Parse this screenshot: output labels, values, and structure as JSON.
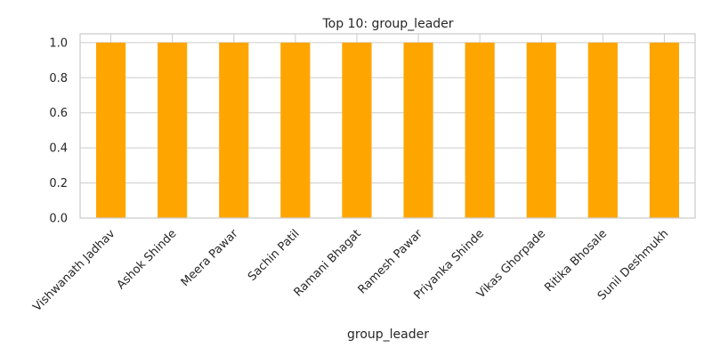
{
  "chart_data": {
    "type": "bar",
    "title": "Top 10: group_leader",
    "xlabel": "group_leader",
    "ylabel": "",
    "categories": [
      "Vishwanath Jadhav",
      "Ashok Shinde",
      "Meera Pawar",
      "Sachin Patil",
      "Ramani Bhagat",
      "Ramesh Pawar",
      "Priyanka Shinde",
      "Vikas Ghorpade",
      "Ritika Bhosale",
      "Sunil Deshmukh"
    ],
    "values": [
      1,
      1,
      1,
      1,
      1,
      1,
      1,
      1,
      1,
      1
    ],
    "ylim": [
      0,
      1.05
    ],
    "yticks": [
      "0.0",
      "0.2",
      "0.4",
      "0.6",
      "0.8",
      "1.0"
    ],
    "grid": true,
    "bar_color": "#ffa500",
    "grid_color": "#cccccc"
  }
}
